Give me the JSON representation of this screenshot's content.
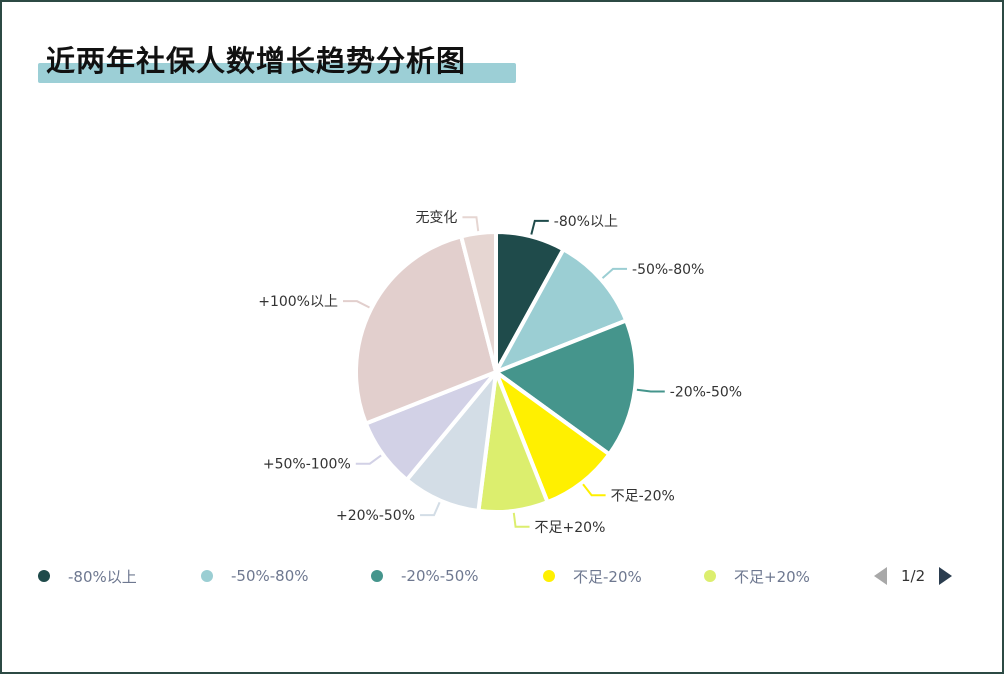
{
  "title": "近两年社保人数增长趋势分析图",
  "chart_data": {
    "type": "pie",
    "title": "近两年社保人数增长趋势分析图",
    "slices": [
      {
        "label": "-80%以上",
        "value": 8,
        "color": "#1f4b4b"
      },
      {
        "label": "-50%-80%",
        "value": 11,
        "color": "#9bced3"
      },
      {
        "label": "-20%-50%",
        "value": 16,
        "color": "#45958c"
      },
      {
        "label": "不足-20%",
        "value": 9,
        "color": "#fff000"
      },
      {
        "label": "不足+20%",
        "value": 8,
        "color": "#dcee6e"
      },
      {
        "label": "+20%-50%",
        "value": 9,
        "color": "#d3dde6"
      },
      {
        "label": "+50%-100%",
        "value": 8,
        "color": "#d2d1e6"
      },
      {
        "label": "+100%以上",
        "value": 27,
        "color": "#e2cfcd"
      },
      {
        "label": "无变化",
        "value": 4,
        "color": "#e6d6d2"
      }
    ],
    "legend_position": "bottom",
    "legend_page": "1/2"
  },
  "legend": {
    "items": [
      {
        "label": "-80%以上",
        "color": "#1f4b4b"
      },
      {
        "label": "-50%-80%",
        "color": "#9bced3"
      },
      {
        "label": "-20%-50%",
        "color": "#45958c"
      },
      {
        "label": "不足-20%",
        "color": "#fff000"
      },
      {
        "label": "不足+20%",
        "color": "#dcee6e"
      }
    ],
    "page": "1/2"
  }
}
